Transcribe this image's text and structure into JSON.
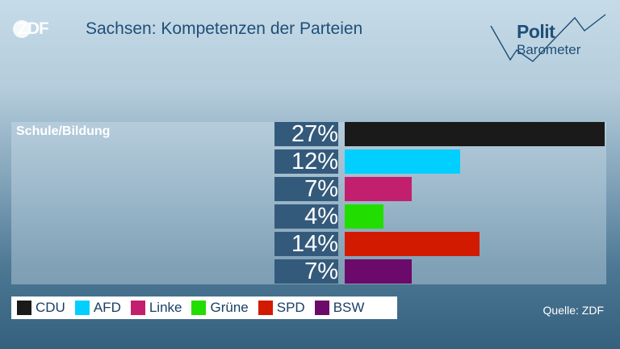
{
  "header": {
    "logo_text": "ZDF",
    "title": "Sachsen: Kompetenzen der Parteien",
    "brand_line1": "Polit",
    "brand_line2": "Barometer"
  },
  "chart_data": {
    "type": "bar",
    "orientation": "horizontal",
    "title": "Sachsen: Kompetenzen der Parteien",
    "category_label": "Schule/Bildung",
    "categories": [
      "CDU",
      "AFD",
      "Linke",
      "Grüne",
      "SPD",
      "BSW"
    ],
    "values": [
      27,
      12,
      7,
      4,
      14,
      7
    ],
    "value_labels": [
      "27%",
      "12%",
      "7%",
      "4%",
      "14%",
      "7%"
    ],
    "colors": [
      "#1a1a1a",
      "#00cfff",
      "#c2206e",
      "#22dd00",
      "#d21a00",
      "#6b0a6a"
    ],
    "xlim": [
      0,
      27
    ],
    "legend_position": "bottom-left"
  },
  "legend": [
    {
      "label": "CDU",
      "color": "#1a1a1a"
    },
    {
      "label": "AFD",
      "color": "#00cfff"
    },
    {
      "label": "Linke",
      "color": "#c2206e"
    },
    {
      "label": "Grüne",
      "color": "#22dd00"
    },
    {
      "label": "SPD",
      "color": "#d21a00"
    },
    {
      "label": "BSW",
      "color": "#6b0a6a"
    }
  ],
  "footer": {
    "source": "Quelle: ZDF"
  }
}
